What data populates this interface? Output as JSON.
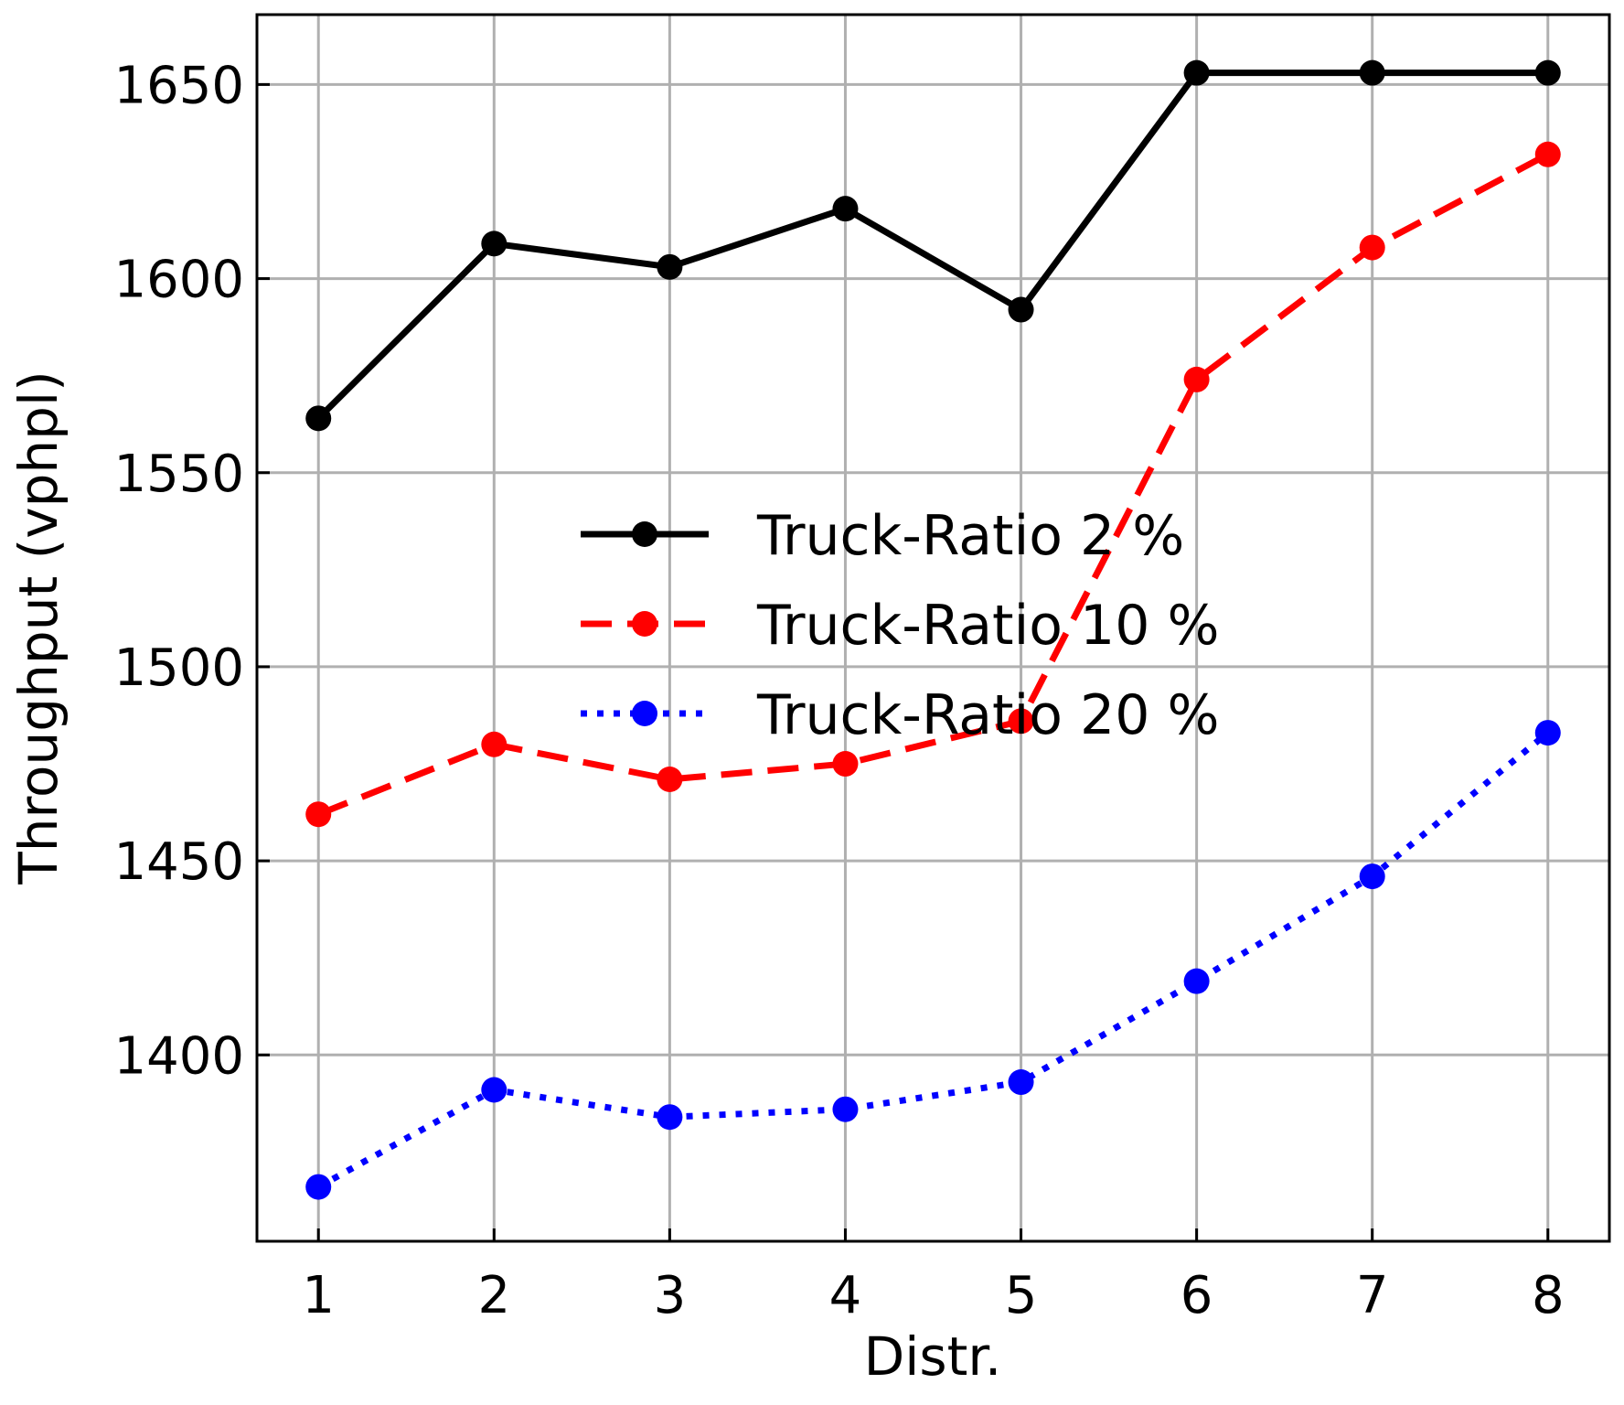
{
  "chart_data": {
    "type": "line",
    "xlabel": "Distr.",
    "ylabel": "Throughput (vphpl)",
    "x": [
      1,
      2,
      3,
      4,
      5,
      6,
      7,
      8
    ],
    "xlim": [
      0.65,
      8.35
    ],
    "ylim": [
      1352,
      1668
    ],
    "yticks": [
      1400,
      1450,
      1500,
      1550,
      1600,
      1650
    ],
    "grid": true,
    "legend_position": "center",
    "series": [
      {
        "name": "Truck-Ratio 2 %",
        "color": "#000000",
        "line_style": "solid",
        "values": [
          1564,
          1609,
          1603,
          1618,
          1592,
          1653,
          1653,
          1653
        ]
      },
      {
        "name": "Truck-Ratio 10 %",
        "color": "#ff0000",
        "line_style": "dashed",
        "values": [
          1462,
          1480,
          1471,
          1475,
          1486,
          1574,
          1608,
          1632
        ]
      },
      {
        "name": "Truck-Ratio 20 %",
        "color": "#0000ff",
        "line_style": "dotted",
        "values": [
          1366,
          1391,
          1384,
          1386,
          1393,
          1419,
          1446,
          1483
        ]
      }
    ]
  }
}
